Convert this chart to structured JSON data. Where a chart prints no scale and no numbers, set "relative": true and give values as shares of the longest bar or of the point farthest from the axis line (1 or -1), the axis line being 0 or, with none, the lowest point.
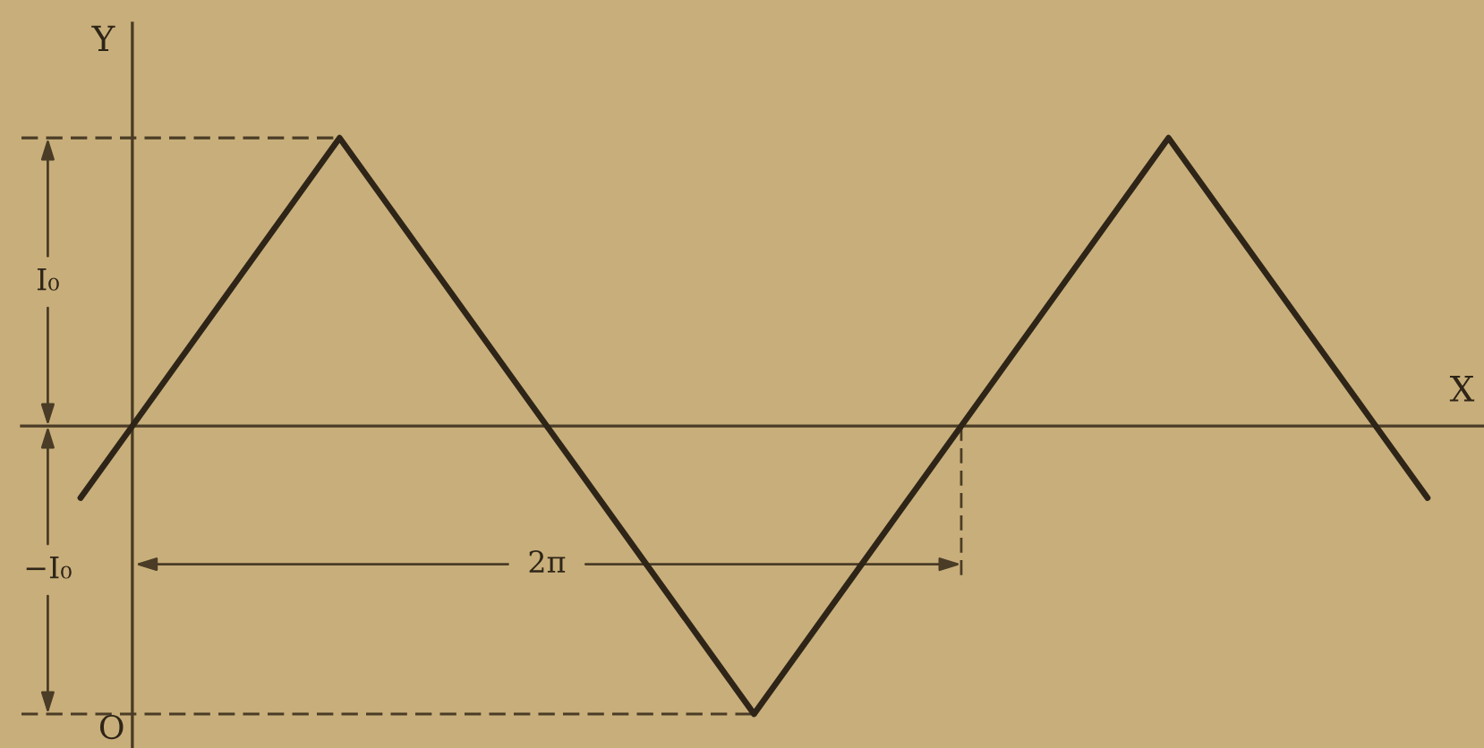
{
  "chart_data": {
    "type": "line",
    "xlabel": "X",
    "ylabel": "Y",
    "relative": true,
    "categories": [
      null,
      null,
      null,
      null,
      null,
      null,
      null,
      null,
      null,
      null,
      null,
      null,
      null,
      null,
      null,
      null,
      null,
      null,
      null,
      null,
      null,
      null,
      null,
      null,
      null,
      null,
      null
    ],
    "series": [
      {
        "color": "#2e2518",
        "values": [
          -0.25,
          0,
          0.25,
          0.5,
          0.75,
          1,
          0.75,
          0.5,
          0.25,
          0,
          -0.25,
          -0.5,
          -0.75,
          -1,
          -0.75,
          -0.5,
          -0.25,
          0,
          0.25,
          0.5,
          0.75,
          1,
          0.75,
          0.5,
          0.25,
          0,
          -0.25
        ]
      }
    ],
    "line_style": "solid",
    "ref_lines": [
      {
        "axis": "y",
        "value": 1,
        "label": "I₀",
        "line_style": "dashed",
        "color": "#4a3c26"
      },
      {
        "axis": "y",
        "value": -1,
        "label": "−I₀",
        "line_style": "dashed",
        "color": "#4a3c26"
      }
    ],
    "annotations": [
      "2π",
      "O"
    ]
  }
}
